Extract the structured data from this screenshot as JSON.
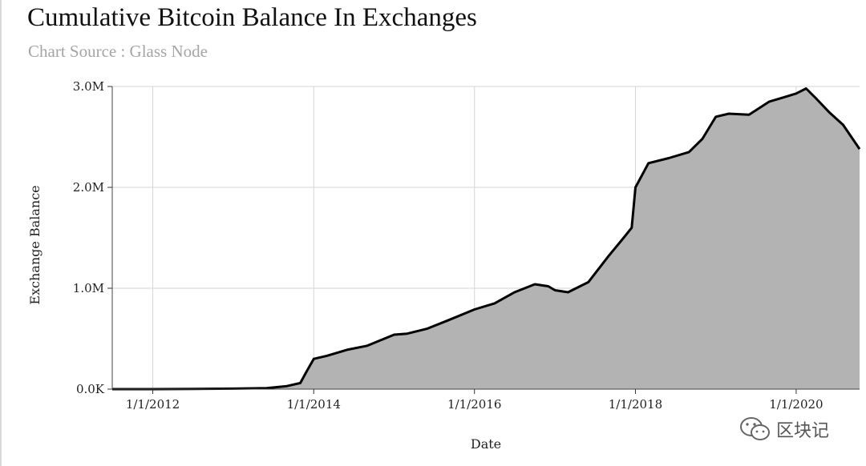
{
  "header": {
    "title": "Cumulative Bitcoin Balance In Exchanges",
    "subtitle": "Chart Source : Glass Node"
  },
  "watermark": {
    "icon": "wechat-icon",
    "text": "区块记"
  },
  "colors": {
    "area_fill": "#b3b3b3",
    "line": "#000000",
    "grid": "#d5d5d5"
  },
  "chart_data": {
    "type": "area",
    "xlabel": "Date",
    "ylabel": "Exchange Balance",
    "x_ticks": [
      "1/1/2012",
      "1/1/2014",
      "1/1/2016",
      "1/1/2018",
      "1/1/2020"
    ],
    "y_ticks": [
      "0.0K",
      "1.0M",
      "2.0M",
      "3.0M"
    ],
    "y_tick_values": [
      0,
      1000000,
      2000000,
      3000000
    ],
    "xlim": [
      "2011-07-01",
      "2020-10-15"
    ],
    "ylim": [
      0,
      3000000
    ],
    "grid": true,
    "series": [
      {
        "x": [
          "2011-07-01",
          "2012-01-01",
          "2012-07-01",
          "2013-01-01",
          "2013-06-01",
          "2013-09-01",
          "2013-11-01",
          "2013-12-01",
          "2014-01-01",
          "2014-03-01",
          "2014-06-01",
          "2014-09-01",
          "2015-01-01",
          "2015-03-01",
          "2015-06-01",
          "2015-09-01",
          "2016-01-01",
          "2016-04-01",
          "2016-07-01",
          "2016-10-01",
          "2016-12-01",
          "2017-01-01",
          "2017-03-01",
          "2017-06-01",
          "2017-09-01",
          "2017-11-01",
          "2017-12-15",
          "2018-01-01",
          "2018-03-01",
          "2018-06-01",
          "2018-09-01",
          "2018-11-01",
          "2019-01-01",
          "2019-03-01",
          "2019-06-01",
          "2019-09-01",
          "2019-11-01",
          "2020-01-01",
          "2020-02-15",
          "2020-04-01",
          "2020-06-01",
          "2020-08-01",
          "2020-10-15"
        ],
        "y": [
          0,
          0,
          2000,
          5000,
          10000,
          30000,
          60000,
          180000,
          300000,
          330000,
          390000,
          430000,
          540000,
          550000,
          600000,
          680000,
          790000,
          850000,
          960000,
          1040000,
          1020000,
          980000,
          960000,
          1060000,
          1320000,
          1480000,
          1600000,
          2000000,
          2240000,
          2290000,
          2350000,
          2480000,
          2700000,
          2730000,
          2720000,
          2850000,
          2890000,
          2930000,
          2980000,
          2880000,
          2740000,
          2620000,
          2380000
        ]
      }
    ]
  }
}
